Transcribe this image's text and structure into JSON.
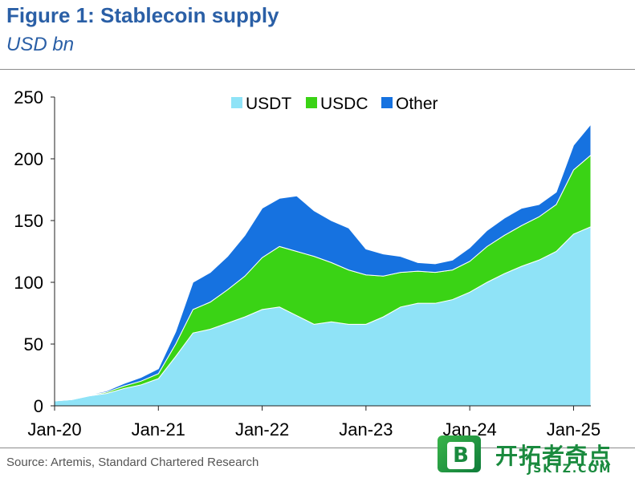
{
  "header": {
    "title": "Figure 1: Stablecoin supply",
    "subtitle": "USD bn"
  },
  "footer": {
    "source": "Source: Artemis, Standard Chartered Research"
  },
  "watermark": {
    "badge_letter": "B",
    "text": "开拓者奇点",
    "sub": "JSKTZ.COM"
  },
  "colors": {
    "title": "#2a5fa6",
    "usdt": "#8fe3f7",
    "usdc": "#3ad315",
    "other": "#1672e0"
  },
  "chart_data": {
    "type": "area",
    "stacked": true,
    "title": "Figure 1: Stablecoin supply",
    "ylabel": "USD bn",
    "xlabel": "",
    "ylim": [
      0,
      250
    ],
    "yticks": [
      0,
      50,
      100,
      150,
      200,
      250
    ],
    "xlim": [
      "2020-01",
      "2025-03"
    ],
    "xticks": [
      "Jan-20",
      "Jan-21",
      "Jan-22",
      "Jan-23",
      "Jan-24",
      "Jan-25"
    ],
    "grid": false,
    "legend": "top-center",
    "x": [
      "2020-01",
      "2020-03",
      "2020-05",
      "2020-07",
      "2020-09",
      "2020-11",
      "2021-01",
      "2021-03",
      "2021-05",
      "2021-07",
      "2021-09",
      "2021-11",
      "2022-01",
      "2022-03",
      "2022-05",
      "2022-07",
      "2022-09",
      "2022-11",
      "2023-01",
      "2023-03",
      "2023-05",
      "2023-07",
      "2023-09",
      "2023-11",
      "2024-01",
      "2024-03",
      "2024-05",
      "2024-07",
      "2024-09",
      "2024-11",
      "2025-01",
      "2025-03"
    ],
    "series": [
      {
        "name": "USDT",
        "color": "#8fe3f7",
        "values": [
          4,
          5,
          8,
          10,
          14,
          17,
          22,
          40,
          59,
          62,
          67,
          72,
          78,
          80,
          73,
          66,
          68,
          66,
          66,
          72,
          80,
          83,
          83,
          86,
          92,
          100,
          107,
          113,
          118,
          125,
          139,
          145
        ]
      },
      {
        "name": "USDC",
        "color": "#3ad315",
        "values": [
          0,
          0,
          0.5,
          1,
          2,
          3,
          4,
          10,
          19,
          22,
          27,
          33,
          42,
          49,
          52,
          55,
          48,
          44,
          40,
          33,
          28,
          26,
          25,
          24,
          25,
          29,
          31,
          33,
          35,
          38,
          52,
          58
        ]
      },
      {
        "name": "Other",
        "color": "#1672e0",
        "values": [
          0,
          0,
          0.5,
          1,
          2,
          3,
          4,
          10,
          22,
          24,
          27,
          33,
          40,
          39,
          45,
          37,
          34,
          34,
          21,
          18,
          13,
          7,
          7,
          8,
          11,
          13,
          14,
          14,
          10,
          10,
          20,
          25
        ]
      }
    ]
  }
}
